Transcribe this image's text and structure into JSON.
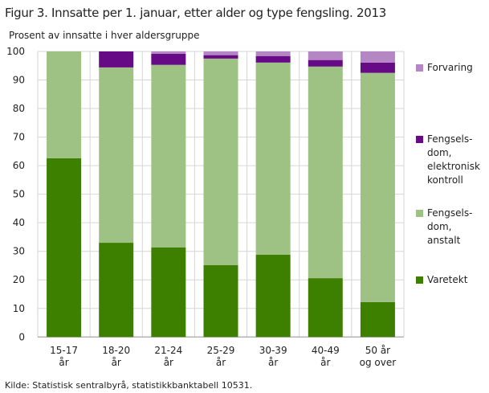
{
  "chart_data": {
    "type": "bar",
    "stacked": true,
    "title": "Figur 3. Innsatte per 1. januar, etter alder og type fengsling. 2013",
    "ylabel": "Prosent av innsatte i hver aldersgruppe",
    "xlabel": "",
    "ylim": [
      0,
      100
    ],
    "yticks": [
      0,
      10,
      20,
      30,
      40,
      50,
      60,
      70,
      80,
      90,
      100
    ],
    "categories": [
      [
        "15-17",
        "år"
      ],
      [
        "18-20",
        "år"
      ],
      [
        "21-24",
        "år"
      ],
      [
        "25-29",
        "år"
      ],
      [
        "30-39",
        "år"
      ],
      [
        "40-49",
        "år"
      ],
      [
        "50 år",
        "og over"
      ]
    ],
    "series": [
      {
        "name": "Varetekt",
        "label_lines": [
          "Varetekt"
        ],
        "color": "#3d8000",
        "values": [
          62.6,
          33.0,
          31.4,
          25.2,
          28.8,
          20.6,
          12.2
        ]
      },
      {
        "name": "Fengselsdom, anstalt",
        "label_lines": [
          "Fengsels-",
          "dom,",
          "anstalt"
        ],
        "color": "#9dc283",
        "values": [
          37.4,
          61.4,
          63.9,
          72.3,
          67.3,
          74.1,
          80.3
        ]
      },
      {
        "name": "Fengselsdom, elektronisk kontroll",
        "label_lines": [
          "Fengsels-",
          "dom,",
          "elektronisk",
          "kontroll"
        ],
        "color": "#670a86",
        "values": [
          0,
          5.6,
          3.9,
          1.2,
          2.3,
          2.3,
          3.6
        ]
      },
      {
        "name": "Forvaring",
        "label_lines": [
          "Forvaring"
        ],
        "color": "#b486c4",
        "values": [
          0,
          0,
          0.8,
          1.3,
          1.6,
          3.0,
          3.9
        ]
      }
    ],
    "grid": true,
    "legend": "right"
  },
  "source": "Kilde: Statistisk sentralbyrå, statistikkbanktabell 10531."
}
